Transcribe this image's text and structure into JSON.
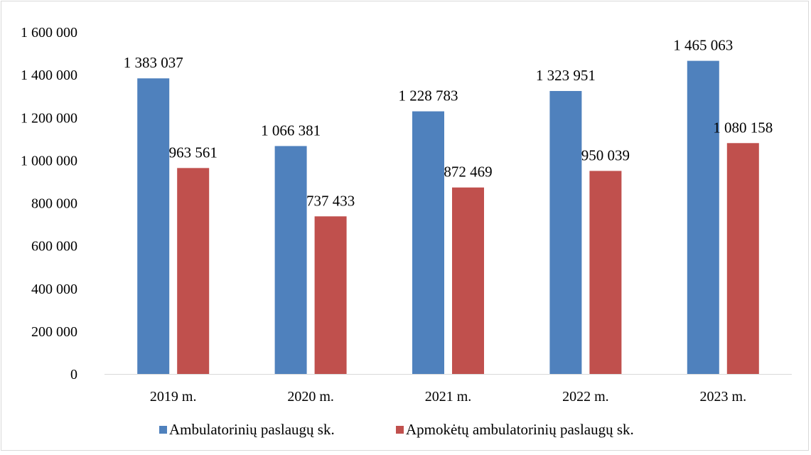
{
  "chart_data": {
    "type": "bar",
    "title": "",
    "xlabel": "",
    "ylabel": "",
    "categories": [
      "2019 m.",
      "2020 m.",
      "2021 m.",
      "2022 m.",
      "2023 m."
    ],
    "series": [
      {
        "name": "Ambulatorinių paslaugų sk.",
        "color": "#4f81bd",
        "values": [
          1383037,
          1066381,
          1228783,
          1323951,
          1465063
        ],
        "labels": [
          "1 383 037",
          "1 066 381",
          "1 228 783",
          "1 323 951",
          "1 465 063"
        ]
      },
      {
        "name": "Apmokėtų ambulatorinių paslaugų sk.",
        "color": "#c0504d",
        "values": [
          963561,
          737433,
          872469,
          950039,
          1080158
        ],
        "labels": [
          "963 561",
          "737 433",
          "872 469",
          "950 039",
          "1 080 158"
        ]
      }
    ],
    "ylim": [
      0,
      1600000
    ],
    "yticks": [
      0,
      200000,
      400000,
      600000,
      800000,
      1000000,
      1200000,
      1400000,
      1600000
    ],
    "ytick_labels": [
      "0",
      "200 000",
      "400 000",
      "600 000",
      "800 000",
      "1 000 000",
      "1 200 000",
      "1 400 000",
      "1 600 000"
    ],
    "grid": false,
    "legend_position": "bottom"
  }
}
